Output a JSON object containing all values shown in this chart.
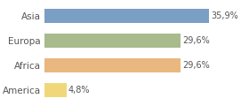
{
  "categories": [
    "Asia",
    "Europa",
    "Africa",
    "America"
  ],
  "values": [
    35.9,
    29.6,
    29.6,
    4.8
  ],
  "labels": [
    "35,9%",
    "29,6%",
    "29,6%",
    "4,8%"
  ],
  "bar_colors": [
    "#7b9ec4",
    "#a8bb8c",
    "#e8b87e",
    "#f0d87a"
  ],
  "background_color": "#ffffff",
  "xlim": [
    0,
    44
  ],
  "label_fontsize": 7.0,
  "tick_fontsize": 7.5,
  "bar_height": 0.55
}
